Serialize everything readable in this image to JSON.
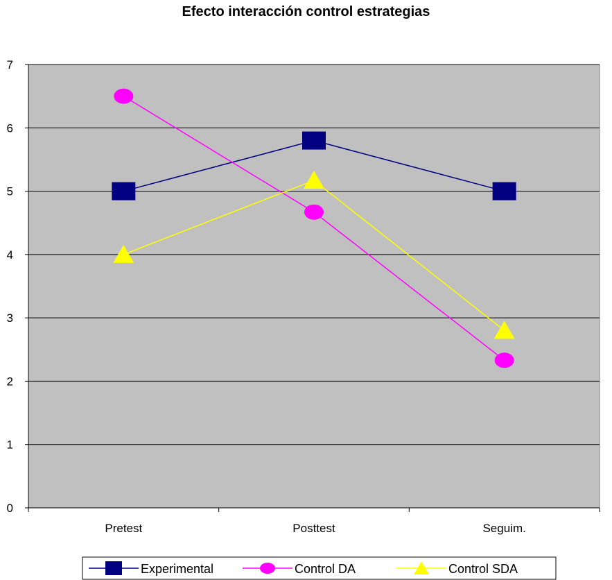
{
  "chart_data": {
    "type": "line",
    "title": "Efecto interacción control estrategias",
    "xlabel": "",
    "ylabel": "",
    "categories": [
      "Pretest",
      "Posttest",
      "Seguim."
    ],
    "ylim": [
      0,
      7
    ],
    "yticks": [
      0,
      1,
      2,
      3,
      4,
      5,
      6,
      7
    ],
    "grid": true,
    "plot_background": "#c0c0c0",
    "legend_position": "bottom",
    "series": [
      {
        "name": "Experimental",
        "values": [
          5.0,
          5.8,
          5.0
        ],
        "color": "#000080",
        "marker": "square"
      },
      {
        "name": "Control DA",
        "values": [
          6.5,
          4.67,
          2.33
        ],
        "color": "#ff00ff",
        "marker": "circle"
      },
      {
        "name": "Control SDA",
        "values": [
          4.0,
          5.17,
          2.8
        ],
        "color": "#ffff00",
        "marker": "triangle"
      }
    ]
  }
}
